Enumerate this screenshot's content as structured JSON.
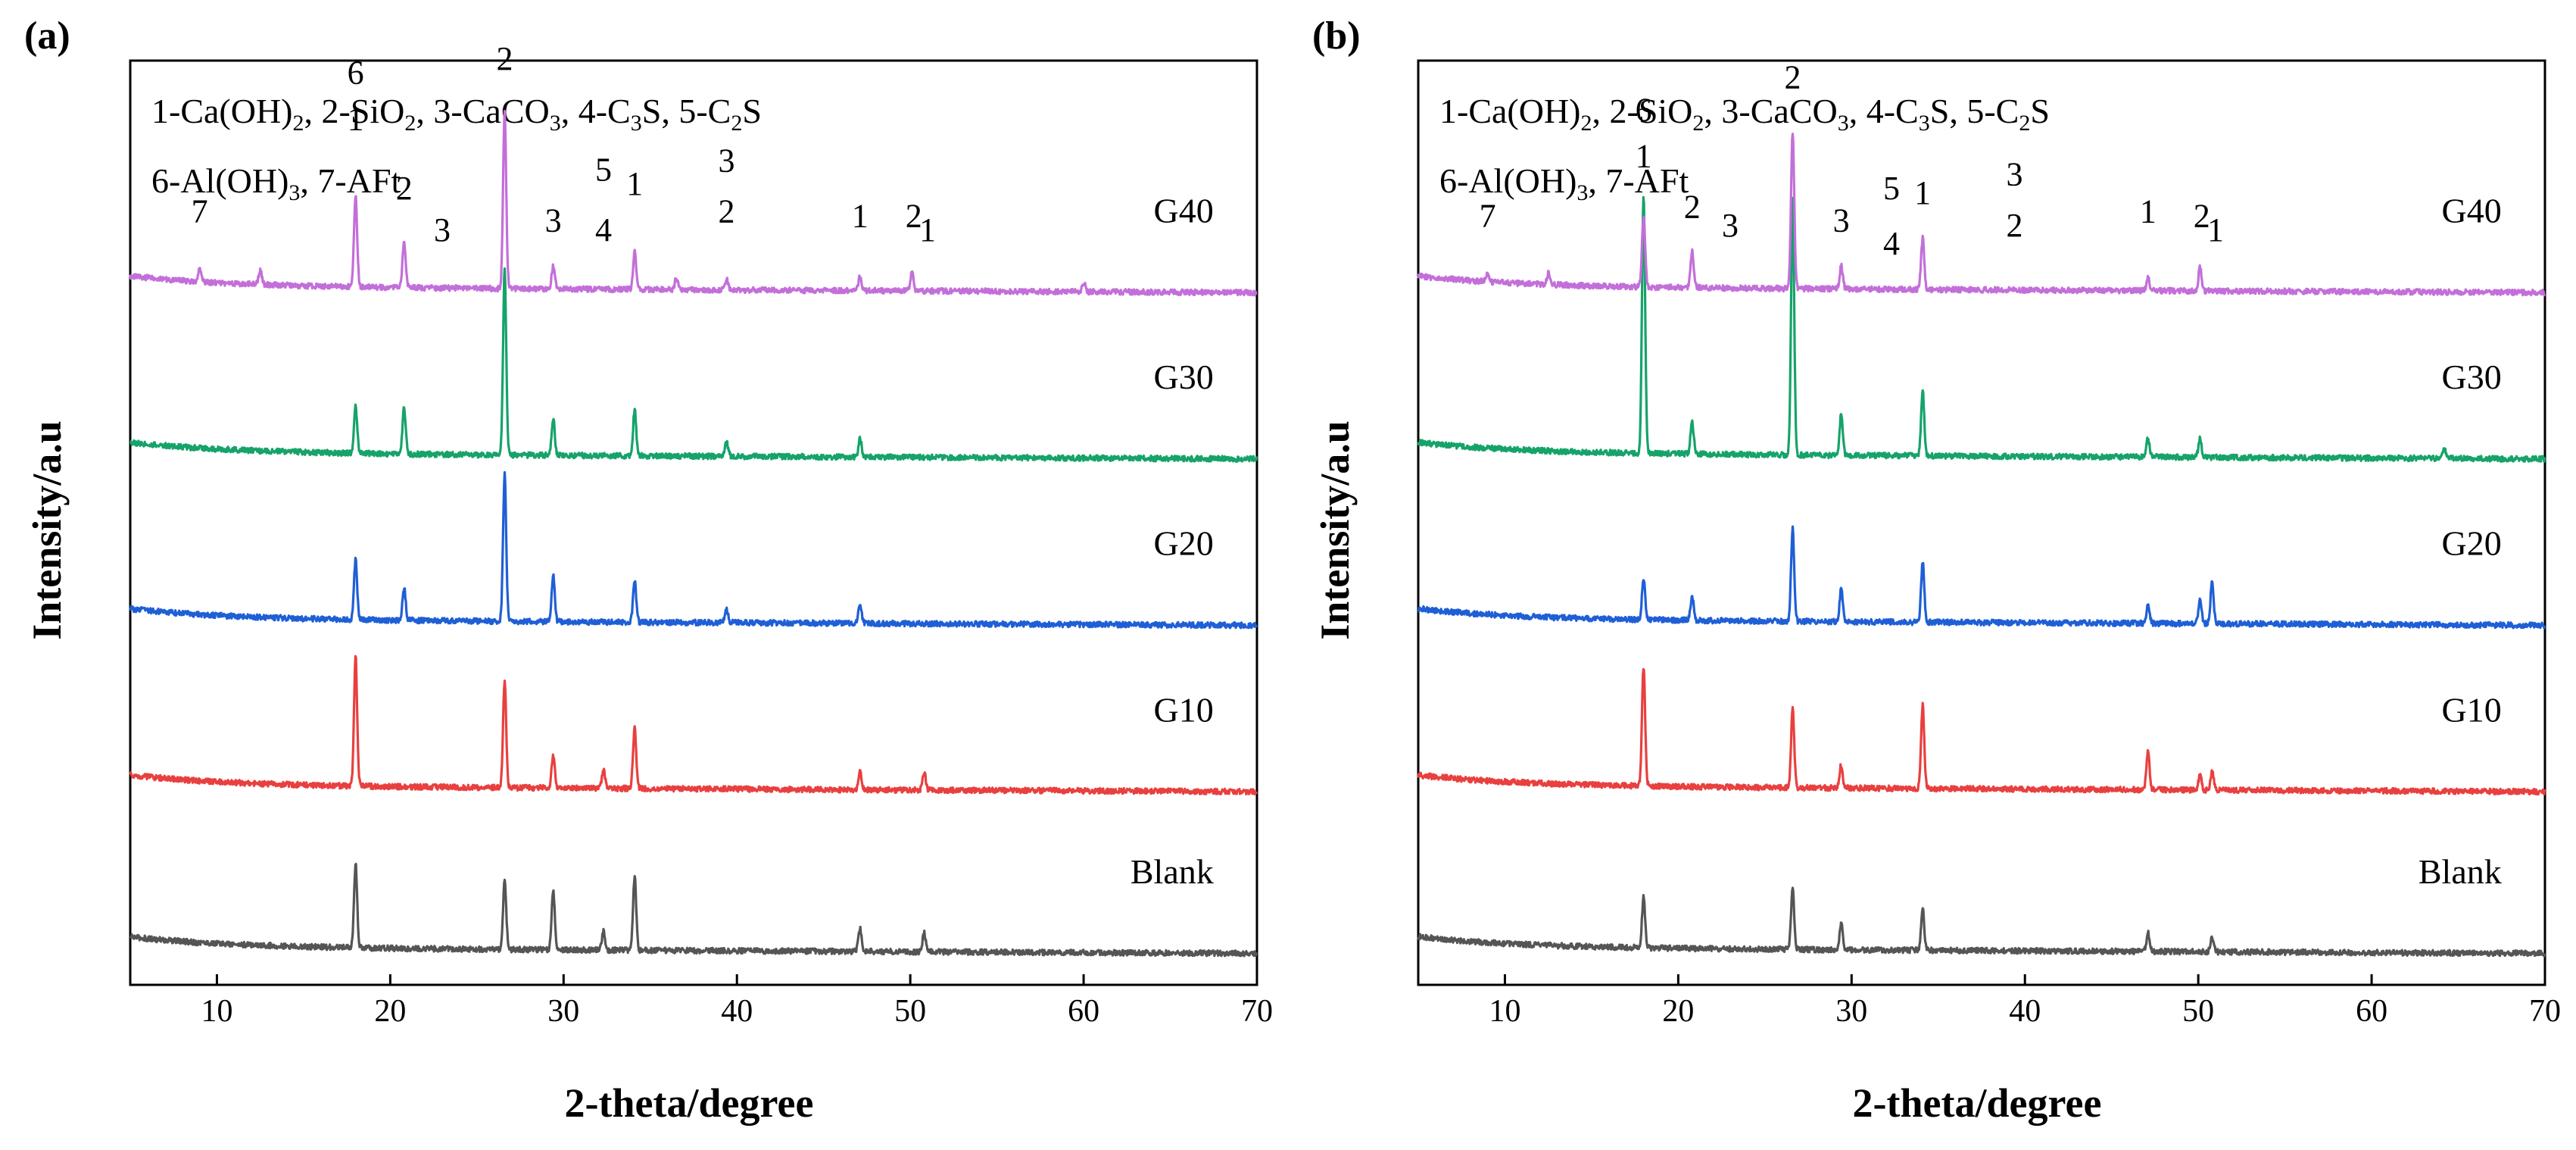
{
  "chart_data": [
    {
      "type": "line",
      "panel_label": "(a)",
      "xlabel": "2-theta/degree",
      "ylabel": "Intensity/a.u",
      "xlim": [
        5,
        70
      ],
      "xticks": [
        10,
        20,
        30,
        40,
        50,
        60,
        70
      ],
      "grid": false,
      "legend_lines": [
        [
          [
            "1-Ca(OH)",
            ""
          ],
          [
            "2",
            "sub"
          ],
          [
            ", 2-SiO",
            ""
          ],
          [
            "2",
            "sub"
          ],
          [
            ", 3-CaCO",
            ""
          ],
          [
            "3",
            "sub"
          ],
          [
            ", 4-C",
            ""
          ],
          [
            "3",
            "sub"
          ],
          [
            "S, 5-C",
            ""
          ],
          [
            "2",
            "sub"
          ],
          [
            "S",
            ""
          ]
        ],
        [
          [
            "6-Al(OH)",
            ""
          ],
          [
            "3",
            "sub"
          ],
          [
            ", 7-AFt",
            ""
          ]
        ]
      ],
      "series": [
        {
          "name": "Blank",
          "color": "#555555",
          "baseline": 0.04,
          "peaks": [
            [
              18.0,
              0.09
            ],
            [
              26.6,
              0.075
            ],
            [
              29.4,
              0.065
            ],
            [
              34.1,
              0.08
            ],
            [
              47.1,
              0.025
            ],
            [
              50.8,
              0.02
            ],
            [
              32.3,
              0.02
            ]
          ]
        },
        {
          "name": "G10",
          "color": "#e8403f",
          "baseline": 0.215,
          "peaks": [
            [
              18.0,
              0.14
            ],
            [
              26.6,
              0.115
            ],
            [
              29.4,
              0.035
            ],
            [
              34.1,
              0.065
            ],
            [
              47.1,
              0.02
            ],
            [
              50.8,
              0.02
            ],
            [
              32.3,
              0.02
            ]
          ]
        },
        {
          "name": "G20",
          "color": "#1f5fd6",
          "baseline": 0.395,
          "peaks": [
            [
              18.0,
              0.065
            ],
            [
              20.8,
              0.035
            ],
            [
              26.6,
              0.16
            ],
            [
              29.4,
              0.05
            ],
            [
              34.1,
              0.045
            ],
            [
              47.1,
              0.02
            ],
            [
              39.4,
              0.015
            ]
          ]
        },
        {
          "name": "G30",
          "color": "#16a36a",
          "baseline": 0.575,
          "peaks": [
            [
              18.0,
              0.05
            ],
            [
              20.8,
              0.05
            ],
            [
              26.6,
              0.2
            ],
            [
              29.4,
              0.04
            ],
            [
              34.1,
              0.05
            ],
            [
              47.1,
              0.02
            ],
            [
              39.4,
              0.015
            ]
          ]
        },
        {
          "name": "G40",
          "color": "#c36fd9",
          "baseline": 0.755,
          "peaks": [
            [
              9.0,
              0.015
            ],
            [
              12.5,
              0.015
            ],
            [
              18.0,
              0.1
            ],
            [
              20.8,
              0.05
            ],
            [
              26.6,
              0.19
            ],
            [
              29.4,
              0.025
            ],
            [
              34.1,
              0.04
            ],
            [
              36.5,
              0.012
            ],
            [
              39.4,
              0.012
            ],
            [
              47.1,
              0.015
            ],
            [
              50.1,
              0.02
            ],
            [
              60.0,
              0.01
            ]
          ]
        }
      ],
      "peak_labels": [
        {
          "text": "7",
          "x": 9.0,
          "y": 0.825
        },
        {
          "text": "6",
          "x": 18.0,
          "y": 0.975
        },
        {
          "text": "1",
          "x": 18.0,
          "y": 0.925
        },
        {
          "text": "2",
          "x": 20.8,
          "y": 0.85
        },
        {
          "text": "3",
          "x": 23.0,
          "y": 0.805
        },
        {
          "text": "2",
          "x": 26.6,
          "y": 0.99
        },
        {
          "text": "3",
          "x": 29.4,
          "y": 0.815
        },
        {
          "text": "5",
          "x": 32.3,
          "y": 0.87
        },
        {
          "text": "4",
          "x": 32.3,
          "y": 0.805
        },
        {
          "text": "1",
          "x": 34.1,
          "y": 0.855
        },
        {
          "text": "3",
          "x": 39.4,
          "y": 0.88
        },
        {
          "text": "2",
          "x": 39.4,
          "y": 0.825
        },
        {
          "text": "1",
          "x": 47.1,
          "y": 0.82
        },
        {
          "text": "2",
          "x": 50.2,
          "y": 0.82
        },
        {
          "text": "1",
          "x": 51.0,
          "y": 0.805
        }
      ],
      "series_labels_x": 67.5
    },
    {
      "type": "line",
      "panel_label": "(b)",
      "xlabel": "2-theta/degree",
      "ylabel": "Intensity/a.u",
      "xlim": [
        5,
        70
      ],
      "xticks": [
        10,
        20,
        30,
        40,
        50,
        60,
        70
      ],
      "grid": false,
      "legend_lines": [
        [
          [
            "1-Ca(OH)",
            ""
          ],
          [
            "2",
            "sub"
          ],
          [
            ", 2-SiO",
            ""
          ],
          [
            "2",
            "sub"
          ],
          [
            ", 3-CaCO",
            ""
          ],
          [
            "3",
            "sub"
          ],
          [
            ", 4-C",
            ""
          ],
          [
            "3",
            "sub"
          ],
          [
            "S, 5-C",
            ""
          ],
          [
            "2",
            "sub"
          ],
          [
            "S",
            ""
          ]
        ],
        [
          [
            "6-Al(OH)",
            ""
          ],
          [
            "3",
            "sub"
          ],
          [
            ", 7-AFt",
            ""
          ]
        ]
      ],
      "series": [
        {
          "name": "Blank",
          "color": "#555555",
          "baseline": 0.04,
          "peaks": [
            [
              18.0,
              0.055
            ],
            [
              26.6,
              0.065
            ],
            [
              29.4,
              0.03
            ],
            [
              34.1,
              0.045
            ],
            [
              47.1,
              0.02
            ],
            [
              50.8,
              0.015
            ]
          ]
        },
        {
          "name": "G10",
          "color": "#e8403f",
          "baseline": 0.215,
          "peaks": [
            [
              18.0,
              0.13
            ],
            [
              26.6,
              0.085
            ],
            [
              29.4,
              0.025
            ],
            [
              34.1,
              0.09
            ],
            [
              47.1,
              0.04
            ],
            [
              50.1,
              0.015
            ],
            [
              50.8,
              0.02
            ]
          ]
        },
        {
          "name": "G20",
          "color": "#1f5fd6",
          "baseline": 0.395,
          "peaks": [
            [
              18.0,
              0.045
            ],
            [
              20.8,
              0.025
            ],
            [
              26.6,
              0.1
            ],
            [
              29.4,
              0.035
            ],
            [
              34.1,
              0.065
            ],
            [
              47.1,
              0.02
            ],
            [
              50.1,
              0.025
            ],
            [
              50.8,
              0.045
            ]
          ]
        },
        {
          "name": "G30",
          "color": "#16a36a",
          "baseline": 0.575,
          "peaks": [
            [
              18.0,
              0.28
            ],
            [
              20.8,
              0.035
            ],
            [
              26.6,
              0.275
            ],
            [
              29.4,
              0.045
            ],
            [
              34.1,
              0.07
            ],
            [
              47.1,
              0.02
            ],
            [
              50.1,
              0.02
            ],
            [
              64.2,
              0.01
            ]
          ]
        },
        {
          "name": "G40",
          "color": "#c36fd9",
          "baseline": 0.755,
          "peaks": [
            [
              9.0,
              0.01
            ],
            [
              12.5,
              0.012
            ],
            [
              18.0,
              0.075
            ],
            [
              20.8,
              0.04
            ],
            [
              26.6,
              0.17
            ],
            [
              29.4,
              0.025
            ],
            [
              34.1,
              0.055
            ],
            [
              47.1,
              0.015
            ],
            [
              50.1,
              0.025
            ]
          ]
        }
      ],
      "peak_labels": [
        {
          "text": "7",
          "x": 9.0,
          "y": 0.82
        },
        {
          "text": "6",
          "x": 18.0,
          "y": 0.935
        },
        {
          "text": "1",
          "x": 18.0,
          "y": 0.885
        },
        {
          "text": "2",
          "x": 20.8,
          "y": 0.83
        },
        {
          "text": "3",
          "x": 23.0,
          "y": 0.81
        },
        {
          "text": "2",
          "x": 26.6,
          "y": 0.97
        },
        {
          "text": "3",
          "x": 29.4,
          "y": 0.815
        },
        {
          "text": "5",
          "x": 32.3,
          "y": 0.85
        },
        {
          "text": "4",
          "x": 32.3,
          "y": 0.79
        },
        {
          "text": "1",
          "x": 34.1,
          "y": 0.845
        },
        {
          "text": "3",
          "x": 39.4,
          "y": 0.865
        },
        {
          "text": "2",
          "x": 39.4,
          "y": 0.81
        },
        {
          "text": "1",
          "x": 47.1,
          "y": 0.825
        },
        {
          "text": "2",
          "x": 50.2,
          "y": 0.82
        },
        {
          "text": "1",
          "x": 51.0,
          "y": 0.805
        }
      ],
      "series_labels_x": 67.5
    }
  ]
}
